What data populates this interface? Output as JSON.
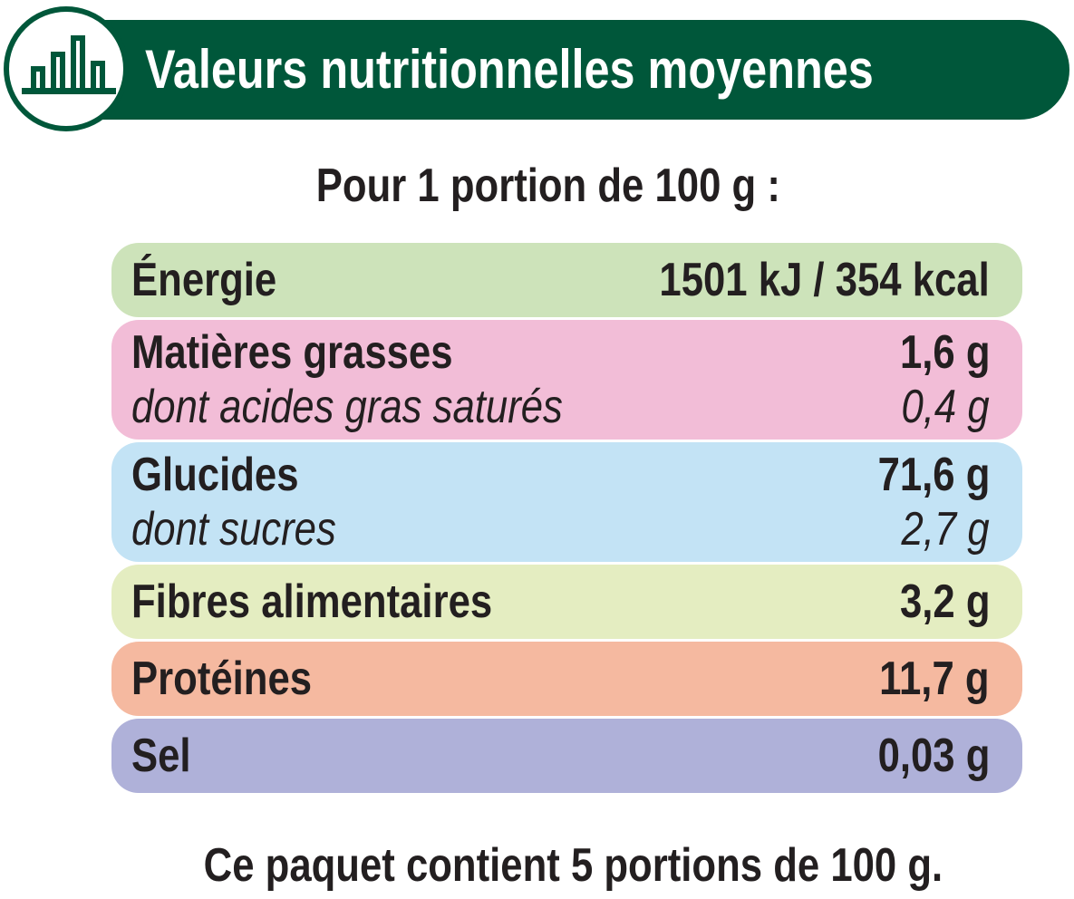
{
  "header": {
    "title": "Valeurs nutritionnelles moyennes"
  },
  "subtitle": "Pour 1 portion de 100 g :",
  "rows": [
    {
      "label": "Énergie",
      "value": "1501 kJ / 354 kcal",
      "color": "#cde3ba"
    },
    {
      "label": "Matières grasses",
      "value": "1,6 g",
      "color": "#f2bdd7",
      "sub": {
        "label": "dont acides gras saturés",
        "value": "0,4 g"
      }
    },
    {
      "label": "Glucides",
      "value": "71,6 g",
      "color": "#c3e3f5",
      "sub": {
        "label": "dont sucres",
        "value": "2,7 g"
      }
    },
    {
      "label": "Fibres alimentaires",
      "value": "3,2 g",
      "color": "#e4edc1"
    },
    {
      "label": "Protéines",
      "value": "11,7 g",
      "color": "#f5b9a0"
    },
    {
      "label": "Sel",
      "value": "0,03 g",
      "color": "#afb1d9"
    }
  ],
  "footer": "Ce paquet contient 5 portions de 100 g."
}
